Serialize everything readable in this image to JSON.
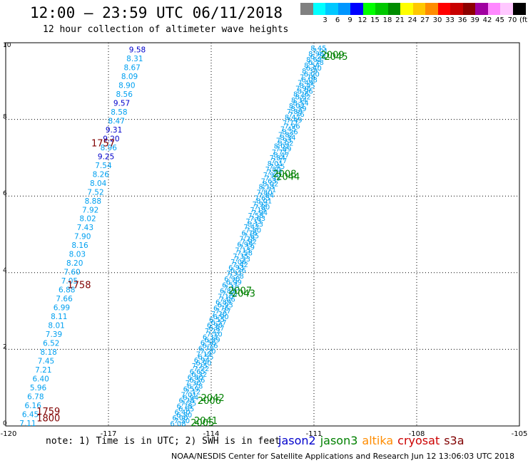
{
  "header": {
    "title": "12:00 – 23:59 UTC 06/11/2018",
    "subtitle": "12 hour collection of altimeter wave heights"
  },
  "scale": [
    {
      "label": "",
      "color": "#808080"
    },
    {
      "label": "3",
      "color": "#00ffff"
    },
    {
      "label": "6",
      "color": "#00c8ff"
    },
    {
      "label": "9",
      "color": "#0096ff"
    },
    {
      "label": "12",
      "color": "#0000ff"
    },
    {
      "label": "15",
      "color": "#00ff00"
    },
    {
      "label": "18",
      "color": "#00c800"
    },
    {
      "label": "21",
      "color": "#008c00"
    },
    {
      "label": "24",
      "color": "#ffff00"
    },
    {
      "label": "27",
      "color": "#ffc800"
    },
    {
      "label": "30",
      "color": "#ff8c00"
    },
    {
      "label": "33",
      "color": "#ff0000"
    },
    {
      "label": "36",
      "color": "#c80000"
    },
    {
      "label": "39",
      "color": "#8c0000"
    },
    {
      "label": "42",
      "color": "#a000a0"
    },
    {
      "label": "45",
      "color": "#ff88ff"
    },
    {
      "label": "70",
      "color": "#ffc8ff"
    },
    {
      "label": "(ft)",
      "color": "#000000"
    }
  ],
  "map": {
    "x_ticks": [
      "-120",
      "-117",
      "-114",
      "-111",
      "-108",
      "-105"
    ],
    "y_ticks": [
      "0",
      "2",
      "4",
      "6",
      "8",
      "10"
    ],
    "lon_range": [
      -120,
      -105
    ],
    "lat_range": [
      0,
      10
    ]
  },
  "track_west": {
    "satellite": "jason2",
    "color": "#00a0f0",
    "values": [
      "7.11",
      "6.45",
      "6.16",
      "6.78",
      "5.96",
      "6.40",
      "7.21",
      "7.45",
      "8.18",
      "6.52",
      "7.39",
      "8.01",
      "8.11",
      "6.99",
      "7.66",
      "6.88",
      "7.05",
      "7.60",
      "8.20",
      "8.03",
      "8.16",
      "7.90",
      "7.43",
      "8.02",
      "7.92",
      "8.88",
      "7.52",
      "8.04",
      "8.26",
      "7.54",
      "9.25",
      "8.96",
      "9.20",
      "9.31",
      "8.47",
      "8.58",
      "9.57",
      "8.56",
      "8.90",
      "8.09",
      "8.67",
      "8.31",
      "9.58"
    ],
    "highlight": {
      "9.25": "#0000cc",
      "9.20": "#0000cc",
      "9.31": "#0000cc",
      "9.57": "#0000cc",
      "9.58": "#0000cc"
    }
  },
  "track_east": {
    "satellite": "jason3",
    "color": "#00a0f0",
    "values": [
      "6.08",
      "6.00",
      "6.40",
      "6.78",
      "6.28",
      "7.01",
      "6.59",
      "7.30",
      "6.80",
      "6.65",
      "7.25",
      "6.94",
      "7.12",
      "6.78",
      "6.56",
      "6.32",
      "7.22",
      "6.90",
      "6.55",
      "7.20",
      "6.76",
      "6.89",
      "7.10",
      "6.87",
      "6.57",
      "6.90",
      "7.37",
      "6.93",
      "7.06",
      "7.35",
      "7.13",
      "6.99",
      "7.28",
      "6.76",
      "7.42",
      "7.33",
      "7.58",
      "7.19",
      "7.92",
      "7.65",
      "7.80",
      "8.13",
      "7.63",
      "7.94",
      "7.80",
      "8.01",
      "7.84",
      "7.71",
      "8.02",
      "7.93",
      "7.82",
      "7.45",
      "7.77",
      "8.47",
      "7.89",
      "8.02",
      "8.34",
      "8.26",
      "7.96",
      "7.49",
      "7.76",
      "8.39",
      "8.54",
      "8.62",
      "8.96",
      "8.45"
    ]
  },
  "time_labels": [
    {
      "text": "1757",
      "color": "#800000",
      "lon": -117.5,
      "lat": 7.3
    },
    {
      "text": "1758",
      "color": "#800000",
      "lon": -118.2,
      "lat": 3.6
    },
    {
      "text": "1759",
      "color": "#800000",
      "lon": -119.1,
      "lat": 0.3
    },
    {
      "text": "1800",
      "color": "#800000",
      "lon": -119.1,
      "lat": 0.12
    },
    {
      "text": "2009",
      "color": "#008000",
      "lon": -110.8,
      "lat": 9.6
    },
    {
      "text": "2045",
      "color": "#008000",
      "lon": -110.7,
      "lat": 9.55
    },
    {
      "text": "2008",
      "color": "#008000",
      "lon": -112.2,
      "lat": 6.5
    },
    {
      "text": "2044",
      "color": "#008000",
      "lon": -112.1,
      "lat": 6.42
    },
    {
      "text": "2007",
      "color": "#008000",
      "lon": -113.5,
      "lat": 3.45
    },
    {
      "text": "2043",
      "color": "#008000",
      "lon": -113.4,
      "lat": 3.37
    },
    {
      "text": "2042",
      "color": "#008000",
      "lon": -114.3,
      "lat": 0.65
    },
    {
      "text": "2006",
      "color": "#008000",
      "lon": -114.4,
      "lat": 0.58
    },
    {
      "text": "2041",
      "color": "#008000",
      "lon": -114.5,
      "lat": 0.06
    },
    {
      "text": "2005",
      "color": "#008000",
      "lon": -114.6,
      "lat": 0.0
    }
  ],
  "footer": {
    "note": "note: 1) Time is in UTC; 2) SWH is in feet",
    "credit": "NOAA/NESDIS Center for Satellite Applications and Research    Jun 12 13:06:03 UTC 2018"
  },
  "legend": [
    {
      "label": "jason2",
      "color": "#0000cc"
    },
    {
      "label": "jason3",
      "color": "#008000"
    },
    {
      "label": "altika",
      "color": "#ff8c00"
    },
    {
      "label": "cryosat",
      "color": "#cc0000"
    },
    {
      "label": "s3a",
      "color": "#800000"
    }
  ]
}
